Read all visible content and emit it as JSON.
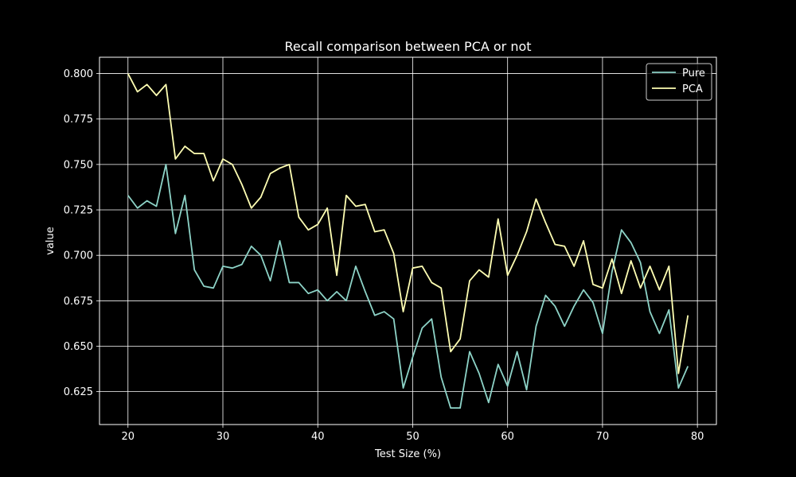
{
  "chart_data": {
    "type": "line",
    "title": "Recall comparison between PCA or not",
    "xlabel": "Test Size (%)",
    "ylabel": "value",
    "xlim": [
      17,
      82
    ],
    "ylim": [
      0.6069,
      0.809
    ],
    "xticks": [
      20,
      30,
      40,
      50,
      60,
      70,
      80
    ],
    "yticks": [
      0.625,
      0.65,
      0.675,
      0.7,
      0.725,
      0.75,
      0.775,
      0.8
    ],
    "xtick_labels": [
      "20",
      "30",
      "40",
      "50",
      "60",
      "70",
      "80"
    ],
    "ytick_labels": [
      "0.625",
      "0.650",
      "0.675",
      "0.700",
      "0.725",
      "0.750",
      "0.775",
      "0.800"
    ],
    "grid": true,
    "legend_position": "top-right",
    "x": [
      20,
      21,
      22,
      23,
      24,
      25,
      26,
      27,
      28,
      29,
      30,
      31,
      32,
      33,
      34,
      35,
      36,
      37,
      38,
      39,
      40,
      41,
      42,
      43,
      44,
      45,
      46,
      47,
      48,
      49,
      50,
      51,
      52,
      53,
      54,
      55,
      56,
      57,
      58,
      59,
      60,
      61,
      62,
      63,
      64,
      65,
      66,
      67,
      68,
      69,
      70,
      71,
      72,
      73,
      74,
      75,
      76,
      77,
      78,
      79
    ],
    "series": [
      {
        "name": "Pure",
        "color": "#8dd3c7",
        "values": [
          0.733,
          0.726,
          0.73,
          0.727,
          0.75,
          0.712,
          0.733,
          0.692,
          0.683,
          0.682,
          0.694,
          0.693,
          0.695,
          0.705,
          0.7,
          0.686,
          0.708,
          0.685,
          0.685,
          0.679,
          0.681,
          0.675,
          0.68,
          0.675,
          0.694,
          0.68,
          0.667,
          0.669,
          0.665,
          0.627,
          0.644,
          0.66,
          0.665,
          0.633,
          0.616,
          0.616,
          0.647,
          0.635,
          0.619,
          0.64,
          0.628,
          0.647,
          0.626,
          0.661,
          0.678,
          0.672,
          0.661,
          0.672,
          0.681,
          0.674,
          0.657,
          0.691,
          0.714,
          0.707,
          0.696,
          0.669,
          0.657,
          0.67,
          0.627,
          0.639
        ]
      },
      {
        "name": "PCA",
        "color": "#ffffb3",
        "values": [
          0.8,
          0.79,
          0.794,
          0.788,
          0.794,
          0.753,
          0.76,
          0.756,
          0.756,
          0.741,
          0.753,
          0.75,
          0.739,
          0.726,
          0.732,
          0.745,
          0.748,
          0.75,
          0.721,
          0.714,
          0.717,
          0.726,
          0.689,
          0.733,
          0.727,
          0.728,
          0.713,
          0.714,
          0.701,
          0.669,
          0.693,
          0.694,
          0.685,
          0.682,
          0.647,
          0.654,
          0.686,
          0.692,
          0.688,
          0.72,
          0.689,
          0.7,
          0.713,
          0.731,
          0.718,
          0.706,
          0.705,
          0.694,
          0.708,
          0.684,
          0.682,
          0.698,
          0.679,
          0.697,
          0.682,
          0.694,
          0.681,
          0.694,
          0.635,
          0.667
        ]
      }
    ]
  }
}
